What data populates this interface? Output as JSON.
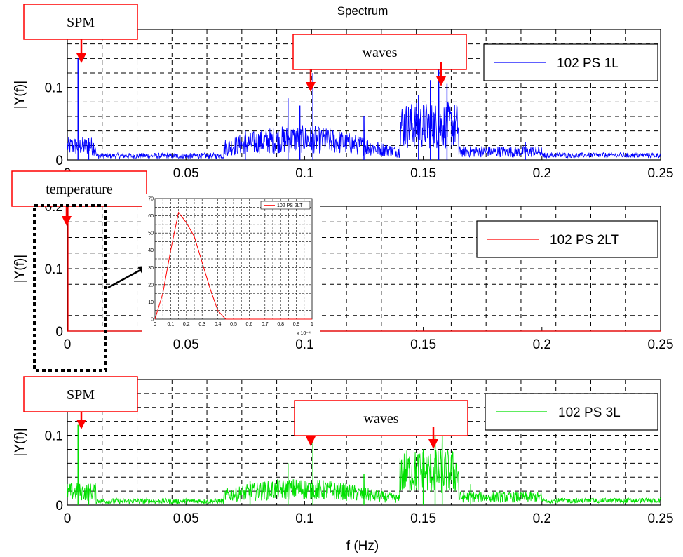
{
  "title": "Spectrum",
  "xlabel": "f (Hz)",
  "colors": {
    "arrow": "#ff0000",
    "callout_border": "#ff0000",
    "inset_arrow": "#000000"
  },
  "callouts": {
    "p1_spm": "SPM",
    "p1_waves": "waves",
    "p2_temperature": "temperature",
    "p3_spm": "SPM",
    "p3_waves": "waves"
  },
  "chart_data": [
    {
      "type": "line",
      "title": "Spectrum",
      "xlabel": "",
      "ylabel": "|Y(f)|",
      "xlim": [
        0,
        0.25
      ],
      "ylim": [
        0,
        0.18
      ],
      "grid": true,
      "legend_position": "top-right",
      "xticks": [
        "0",
        "0.05",
        "0.1",
        "0.15",
        "0.2",
        "0.25"
      ],
      "yticks": [
        "0",
        "0.1"
      ],
      "series": [
        {
          "name": "102 PS 1L",
          "color": "#0000ff",
          "peaks": [
            {
              "x": 0.0045,
              "y": 0.14
            },
            {
              "x": 0.009,
              "y": 0.03
            },
            {
              "x": 0.075,
              "y": 0.04
            },
            {
              "x": 0.093,
              "y": 0.085
            },
            {
              "x": 0.098,
              "y": 0.075
            },
            {
              "x": 0.1035,
              "y": 0.12
            },
            {
              "x": 0.125,
              "y": 0.06
            },
            {
              "x": 0.148,
              "y": 0.09
            },
            {
              "x": 0.153,
              "y": 0.11
            },
            {
              "x": 0.1565,
              "y": 0.125
            },
            {
              "x": 0.16,
              "y": 0.105
            },
            {
              "x": 0.193,
              "y": 0.025
            }
          ]
        }
      ]
    },
    {
      "type": "line",
      "title": "",
      "xlabel": "",
      "ylabel": "|Y(f)|",
      "xlim": [
        0,
        0.25
      ],
      "ylim": [
        0,
        0.2
      ],
      "grid": true,
      "legend_position": "top-right",
      "xticks": [
        "0",
        "0.05",
        "0.1",
        "0.15",
        "0.2",
        "0.25"
      ],
      "yticks": [
        "0",
        "0.1",
        "0.2"
      ],
      "series": [
        {
          "name": "102 PS 2LT",
          "color": "#ff0000",
          "peaks": [
            {
              "x": 0.0,
              "y": 0.2
            }
          ]
        }
      ],
      "inset": {
        "type": "line",
        "xlim": [
          0,
          1
        ],
        "ylim": [
          0,
          70
        ],
        "x_multiplier": "x 10⁻⁴",
        "xticks": [
          "0",
          "0.1",
          "0.2",
          "0.3",
          "0.4",
          "0.5",
          "0.6",
          "0.7",
          "0.8",
          "0.9",
          "1"
        ],
        "yticks": [
          "0",
          "10",
          "20",
          "30",
          "40",
          "50",
          "60",
          "70"
        ],
        "series": [
          {
            "name": "102 PS 2LT",
            "color": "#ff0000",
            "x": [
              0,
              0.05,
              0.1,
              0.15,
              0.2,
              0.25,
              0.3,
              0.35,
              0.4,
              0.45,
              1.0
            ],
            "y": [
              0,
              15,
              40,
              62,
              56,
              48,
              33,
              18,
              5,
              0,
              0
            ]
          }
        ]
      }
    },
    {
      "type": "line",
      "title": "",
      "xlabel": "f (Hz)",
      "ylabel": "|Y(f)|",
      "xlim": [
        0,
        0.25
      ],
      "ylim": [
        0,
        0.18
      ],
      "grid": true,
      "legend_position": "top-right",
      "xticks": [
        "0",
        "0.05",
        "0.1",
        "0.15",
        "0.2",
        "0.25"
      ],
      "yticks": [
        "0",
        "0.1"
      ],
      "series": [
        {
          "name": "102 PS 3L",
          "color": "#00e000",
          "peaks": [
            {
              "x": 0.0045,
              "y": 0.115
            },
            {
              "x": 0.009,
              "y": 0.025
            },
            {
              "x": 0.077,
              "y": 0.035
            },
            {
              "x": 0.093,
              "y": 0.06
            },
            {
              "x": 0.1035,
              "y": 0.09
            },
            {
              "x": 0.125,
              "y": 0.045
            },
            {
              "x": 0.15,
              "y": 0.08
            },
            {
              "x": 0.155,
              "y": 0.105
            },
            {
              "x": 0.158,
              "y": 0.11
            },
            {
              "x": 0.17,
              "y": 0.03
            }
          ]
        }
      ]
    }
  ]
}
